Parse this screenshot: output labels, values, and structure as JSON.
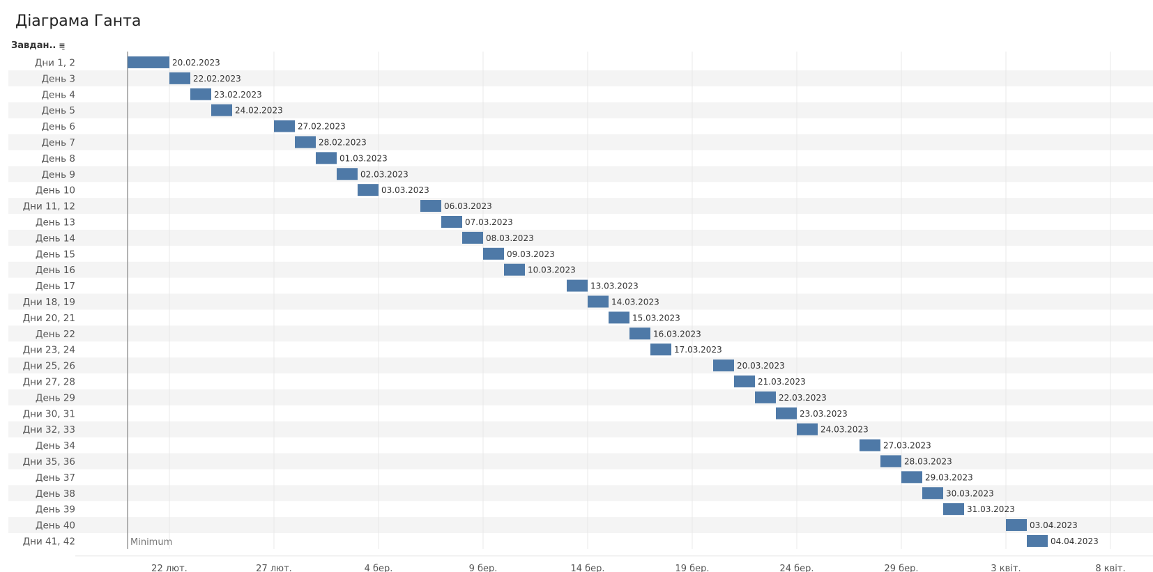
{
  "title": "Діаграма Ганта",
  "column_header": "Завдан..",
  "chart_data": {
    "type": "gantt",
    "reference_line": {
      "label": "Minimum",
      "date": "2023-02-20"
    },
    "x_ticks": [
      {
        "date": "2023-02-22",
        "label": "22 лют."
      },
      {
        "date": "2023-02-27",
        "label": "27 лют."
      },
      {
        "date": "2023-03-04",
        "label": "4 бер."
      },
      {
        "date": "2023-03-09",
        "label": "9 бер."
      },
      {
        "date": "2023-03-14",
        "label": "14 бер."
      },
      {
        "date": "2023-03-19",
        "label": "19 бер."
      },
      {
        "date": "2023-03-24",
        "label": "24 бер."
      },
      {
        "date": "2023-03-29",
        "label": "29 бер."
      },
      {
        "date": "2023-04-03",
        "label": "3 квіт."
      },
      {
        "date": "2023-04-08",
        "label": "8 квіт."
      }
    ],
    "tasks": [
      {
        "name": "Дни 1, 2",
        "start": "2023-02-20",
        "days": 2,
        "label": "20.02.2023"
      },
      {
        "name": "День 3",
        "start": "2023-02-22",
        "days": 1,
        "label": "22.02.2023"
      },
      {
        "name": "День 4",
        "start": "2023-02-23",
        "days": 1,
        "label": "23.02.2023"
      },
      {
        "name": "День 5",
        "start": "2023-02-24",
        "days": 1,
        "label": "24.02.2023"
      },
      {
        "name": "День 6",
        "start": "2023-02-27",
        "days": 1,
        "label": "27.02.2023"
      },
      {
        "name": "День 7",
        "start": "2023-02-28",
        "days": 1,
        "label": "28.02.2023"
      },
      {
        "name": "День 8",
        "start": "2023-03-01",
        "days": 1,
        "label": "01.03.2023"
      },
      {
        "name": "День 9",
        "start": "2023-03-02",
        "days": 1,
        "label": "02.03.2023"
      },
      {
        "name": "День 10",
        "start": "2023-03-03",
        "days": 1,
        "label": "03.03.2023"
      },
      {
        "name": "Дни 11, 12",
        "start": "2023-03-06",
        "days": 1,
        "label": "06.03.2023"
      },
      {
        "name": "День 13",
        "start": "2023-03-07",
        "days": 1,
        "label": "07.03.2023"
      },
      {
        "name": "День 14",
        "start": "2023-03-08",
        "days": 1,
        "label": "08.03.2023"
      },
      {
        "name": "День 15",
        "start": "2023-03-09",
        "days": 1,
        "label": "09.03.2023"
      },
      {
        "name": "День 16",
        "start": "2023-03-10",
        "days": 1,
        "label": "10.03.2023"
      },
      {
        "name": "День 17",
        "start": "2023-03-13",
        "days": 1,
        "label": "13.03.2023"
      },
      {
        "name": "Дни 18, 19",
        "start": "2023-03-14",
        "days": 1,
        "label": "14.03.2023"
      },
      {
        "name": "Дни 20, 21",
        "start": "2023-03-15",
        "days": 1,
        "label": "15.03.2023"
      },
      {
        "name": "День 22",
        "start": "2023-03-16",
        "days": 1,
        "label": "16.03.2023"
      },
      {
        "name": "Дни 23, 24",
        "start": "2023-03-17",
        "days": 1,
        "label": "17.03.2023"
      },
      {
        "name": "Дни 25, 26",
        "start": "2023-03-20",
        "days": 1,
        "label": "20.03.2023"
      },
      {
        "name": "Дни 27, 28",
        "start": "2023-03-21",
        "days": 1,
        "label": "21.03.2023"
      },
      {
        "name": "День 29",
        "start": "2023-03-22",
        "days": 1,
        "label": "22.03.2023"
      },
      {
        "name": "Дни 30, 31",
        "start": "2023-03-23",
        "days": 1,
        "label": "23.03.2023"
      },
      {
        "name": "Дни 32, 33",
        "start": "2023-03-24",
        "days": 1,
        "label": "24.03.2023"
      },
      {
        "name": "День 34",
        "start": "2023-03-27",
        "days": 1,
        "label": "27.03.2023"
      },
      {
        "name": "Дни 35, 36",
        "start": "2023-03-28",
        "days": 1,
        "label": "28.03.2023"
      },
      {
        "name": "День 37",
        "start": "2023-03-29",
        "days": 1,
        "label": "29.03.2023"
      },
      {
        "name": "День 38",
        "start": "2023-03-30",
        "days": 1,
        "label": "30.03.2023"
      },
      {
        "name": "День 39",
        "start": "2023-03-31",
        "days": 1,
        "label": "31.03.2023"
      },
      {
        "name": "День 40",
        "start": "2023-04-03",
        "days": 1,
        "label": "03.04.2023"
      },
      {
        "name": "Дни 41, 42",
        "start": "2023-04-04",
        "days": 1,
        "label": "04.04.2023"
      }
    ],
    "bar_color": "#4E79A7",
    "band_color": "#F4F4F4",
    "grid_color": "#E8E8E8",
    "grid": true
  }
}
